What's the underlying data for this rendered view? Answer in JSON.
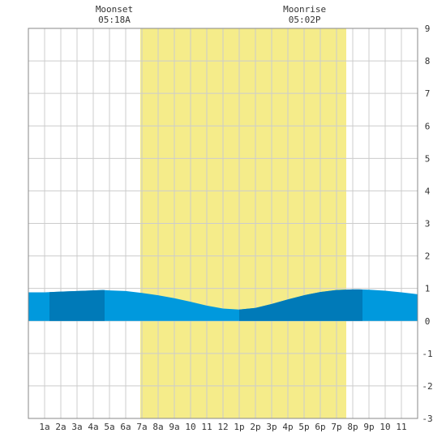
{
  "chart_data": {
    "type": "area",
    "x_tick_labels": [
      "1a",
      "2a",
      "3a",
      "4a",
      "5a",
      "6a",
      "7a",
      "8a",
      "9a",
      "10",
      "11",
      "12",
      "1p",
      "2p",
      "3p",
      "4p",
      "5p",
      "6p",
      "7p",
      "8p",
      "9p",
      "10",
      "11"
    ],
    "y_tick_labels": [
      "9",
      "8",
      "7",
      "6",
      "5",
      "4",
      "3",
      "2",
      "1",
      "0",
      "-1",
      "-2",
      "-3"
    ],
    "xlim": [
      0,
      24
    ],
    "ylim": [
      -3,
      9
    ],
    "grid": true,
    "daylight_hours": [
      6.9,
      19.6
    ],
    "moon_events": [
      {
        "name": "Moonset",
        "time": "05:18A",
        "hour": 5.3
      },
      {
        "name": "Moonrise",
        "time": "05:02P",
        "hour": 17.03
      }
    ],
    "series": [
      {
        "x": [
          0,
          1,
          2,
          3,
          4,
          4.6,
          5,
          6,
          7,
          8,
          9,
          10,
          11,
          12,
          13,
          14,
          15,
          16,
          17,
          18,
          19,
          20,
          20.4,
          21,
          22,
          23,
          24
        ],
        "values": [
          0.88,
          0.88,
          0.9,
          0.92,
          0.94,
          0.95,
          0.94,
          0.92,
          0.86,
          0.79,
          0.7,
          0.59,
          0.47,
          0.38,
          0.35,
          0.4,
          0.52,
          0.66,
          0.79,
          0.89,
          0.95,
          0.97,
          0.97,
          0.96,
          0.93,
          0.88,
          0.82
        ]
      }
    ],
    "dark_bands": [
      [
        1.3,
        4.7
      ],
      [
        13.0,
        20.6
      ]
    ],
    "colors": {
      "water": "#0099dd",
      "water_dark": "#007ab8",
      "daylight": "#f5ec8a",
      "grid": "#cccccc",
      "frame": "#888888"
    }
  }
}
